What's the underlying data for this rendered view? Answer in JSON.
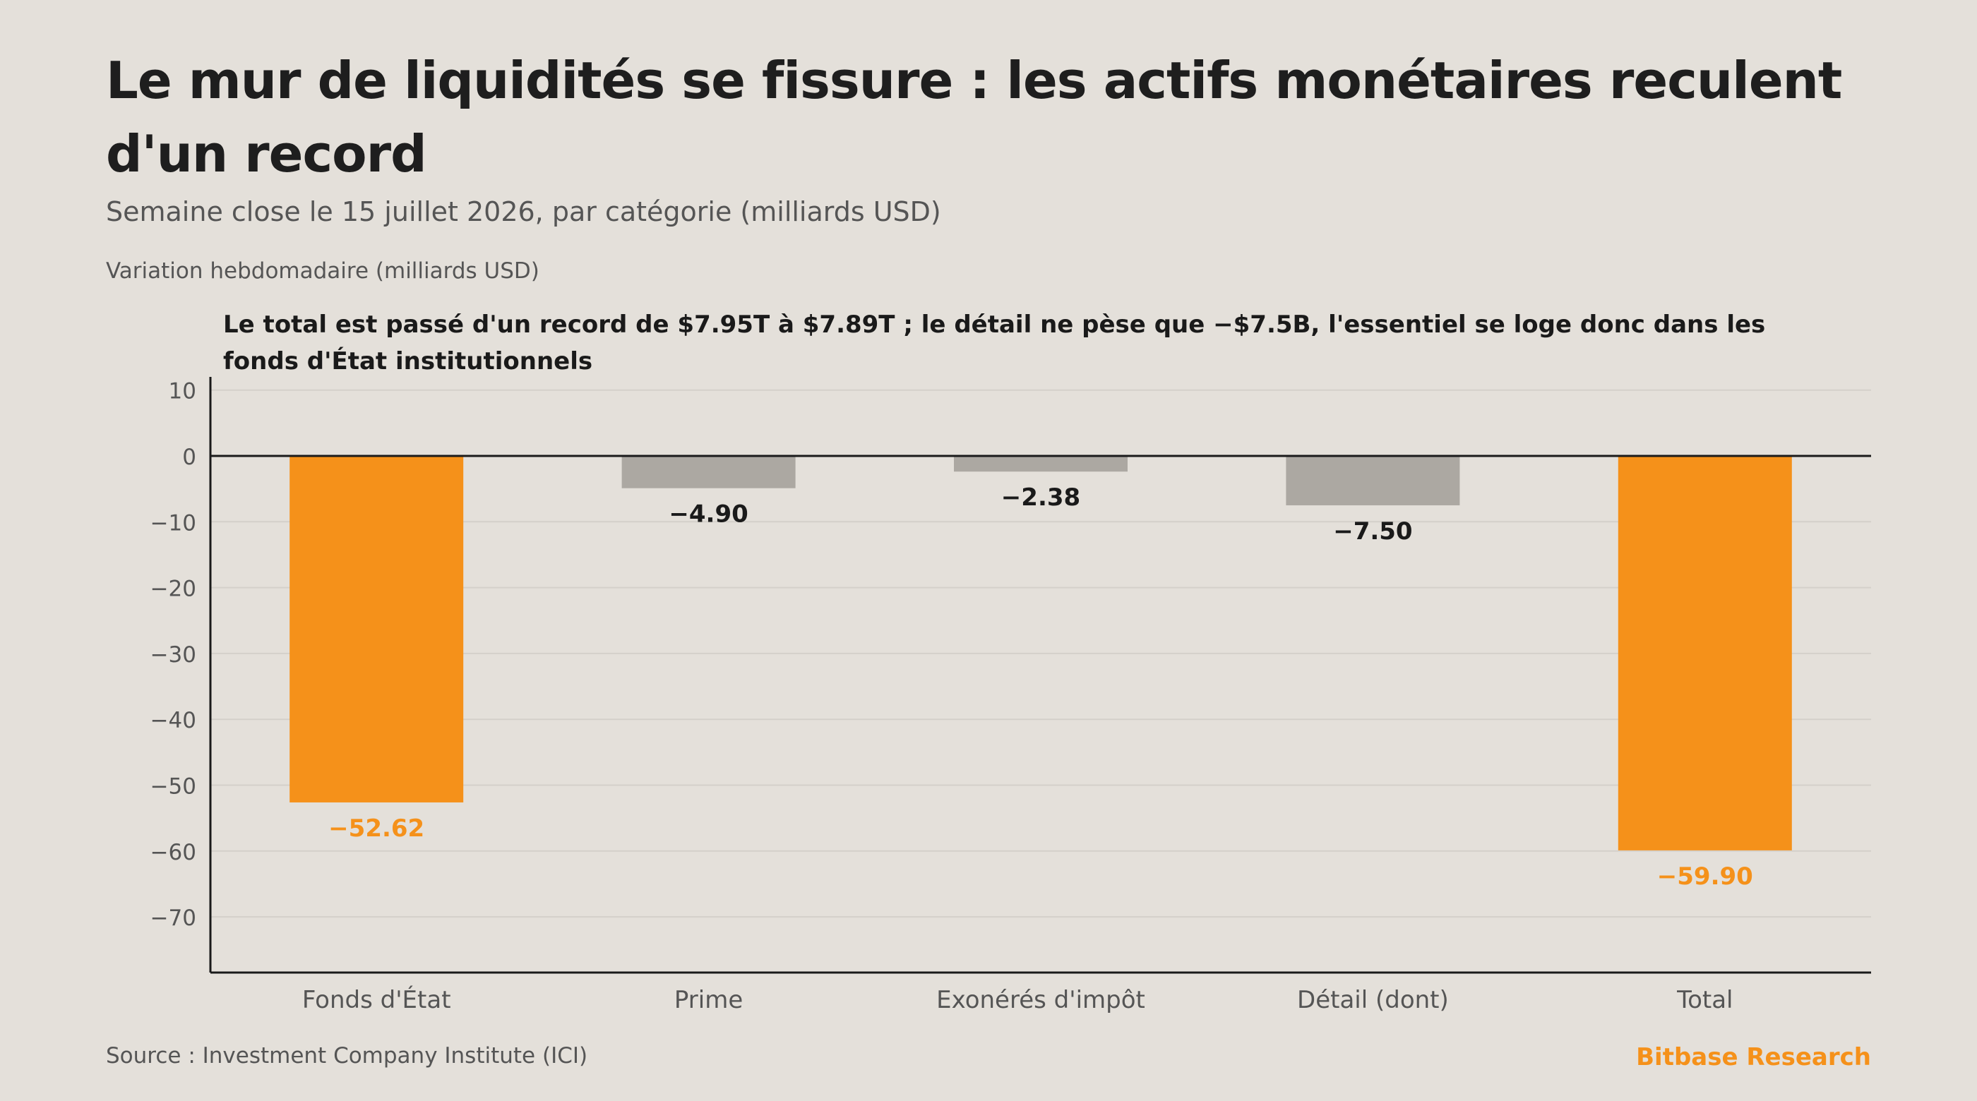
{
  "title": "Le mur de liquidités se fissure : les actifs monétaires reculent d'un record",
  "subtitle": "Semaine close le 15 juillet 2026, par catégorie (milliards USD)",
  "source": "Source : Investment Company Institute (ICI)",
  "brand": "Bitbase Research",
  "colors": {
    "background": "#e4e0da",
    "highlight": "#f5911a",
    "neutral": "#aca8a2",
    "axis": "#1a1a1a",
    "grid": "#d4d0ca",
    "tick": "#555555"
  },
  "chart_data": {
    "type": "bar",
    "title": "Le mur de liquidités se fissure : les actifs monétaires reculent d'un record",
    "subtitle": "Semaine close le 15 juillet 2026, par catégorie (milliards USD)",
    "ylabel": "Variation hebdomadaire (milliards USD)",
    "xlabel": "",
    "annotation": "Le total est passé d'un record de $7.95T à $7.89T ; le détail ne pèse que −$7.5B, l'essentiel se loge donc dans les fonds d'État institutionnels",
    "categories": [
      "Fonds d'État",
      "Prime",
      "Exonérés d'impôt",
      "Détail (dont)",
      "Total"
    ],
    "values": [
      -52.62,
      -4.9,
      -2.38,
      -7.5,
      -59.9
    ],
    "value_labels": [
      "−52.62",
      "−4.90",
      "−2.38",
      "−7.50",
      "−59.90"
    ],
    "highlight": [
      true,
      false,
      false,
      false,
      true
    ],
    "ylim": [
      -78,
      12
    ],
    "yticks": [
      10,
      0,
      -10,
      -20,
      -30,
      -40,
      -50,
      -60,
      -70
    ],
    "ytick_labels": [
      "10",
      "0",
      "−10",
      "−20",
      "−30",
      "−40",
      "−50",
      "−60",
      "−70"
    ],
    "grid": true,
    "legend": "none"
  }
}
